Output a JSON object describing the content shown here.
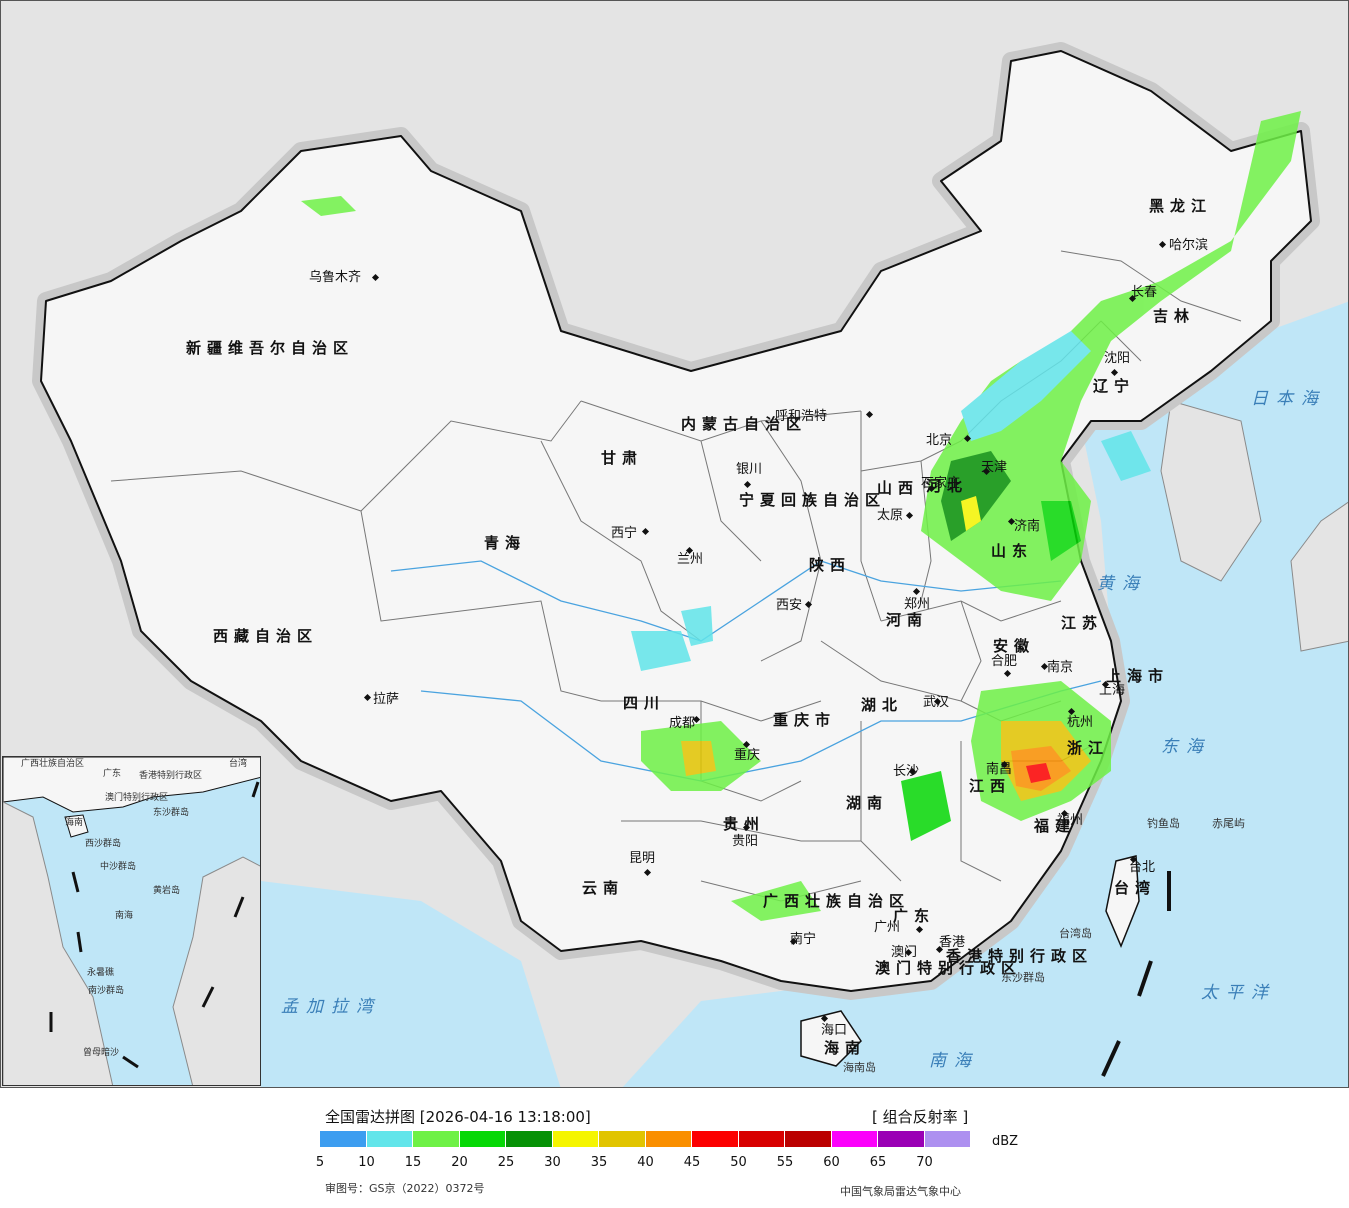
{
  "map": {
    "provinces": [
      {
        "name": "新疆维吾尔自治区"
      },
      {
        "name": "西藏自治区"
      },
      {
        "name": "青海"
      },
      {
        "name": "甘肃"
      },
      {
        "name": "内蒙古自治区"
      },
      {
        "name": "黑龙江"
      },
      {
        "name": "吉林"
      },
      {
        "name": "辽宁"
      },
      {
        "name": "河北"
      },
      {
        "name": "山西"
      },
      {
        "name": "陕西"
      },
      {
        "name": "河南"
      },
      {
        "name": "山东"
      },
      {
        "name": "江苏"
      },
      {
        "name": "安徽"
      },
      {
        "name": "浙江"
      },
      {
        "name": "湖北"
      },
      {
        "name": "湖南"
      },
      {
        "name": "江西"
      },
      {
        "name": "福建"
      },
      {
        "name": "四川"
      },
      {
        "name": "重庆市"
      },
      {
        "name": "贵州"
      },
      {
        "name": "云南"
      },
      {
        "name": "广西壮族自治区"
      },
      {
        "name": "广东"
      },
      {
        "name": "海南"
      },
      {
        "name": "上海市"
      },
      {
        "name": "台湾"
      },
      {
        "name": "宁夏回族自治区"
      },
      {
        "name": "香港特别行政区"
      },
      {
        "name": "澳门特别行政区"
      }
    ],
    "cities": [
      {
        "name": "乌鲁木齐"
      },
      {
        "name": "拉萨"
      },
      {
        "name": "西宁"
      },
      {
        "name": "兰州"
      },
      {
        "name": "银川"
      },
      {
        "name": "呼和浩特"
      },
      {
        "name": "哈尔滨"
      },
      {
        "name": "长春"
      },
      {
        "name": "沈阳"
      },
      {
        "name": "北京"
      },
      {
        "name": "天津"
      },
      {
        "name": "石家庄"
      },
      {
        "name": "太原"
      },
      {
        "name": "济南"
      },
      {
        "name": "西安"
      },
      {
        "name": "郑州"
      },
      {
        "name": "合肥"
      },
      {
        "name": "南京"
      },
      {
        "name": "上海"
      },
      {
        "name": "杭州"
      },
      {
        "name": "武汉"
      },
      {
        "name": "成都"
      },
      {
        "name": "重庆"
      },
      {
        "name": "长沙"
      },
      {
        "name": "南昌"
      },
      {
        "name": "福州"
      },
      {
        "name": "贵阳"
      },
      {
        "name": "昆明"
      },
      {
        "name": "南宁"
      },
      {
        "name": "广州"
      },
      {
        "name": "澳门"
      },
      {
        "name": "香港"
      },
      {
        "name": "海口"
      },
      {
        "name": "台北"
      }
    ],
    "seas": [
      {
        "name": "日本海"
      },
      {
        "name": "黄海"
      },
      {
        "name": "东海"
      },
      {
        "name": "南海"
      },
      {
        "name": "太平洋"
      },
      {
        "name": "孟加拉湾"
      }
    ],
    "islands": [
      {
        "name": "钓鱼岛"
      },
      {
        "name": "赤尾屿"
      },
      {
        "name": "台湾岛"
      },
      {
        "name": "东沙群岛"
      },
      {
        "name": "海南岛"
      }
    ],
    "inset_labels": [
      {
        "name": "广西壮族自治区"
      },
      {
        "name": "广东"
      },
      {
        "name": "台湾"
      },
      {
        "name": "香港特别行政区"
      },
      {
        "name": "澳门特别行政区"
      },
      {
        "name": "东沙群岛"
      },
      {
        "name": "海南"
      },
      {
        "name": "西沙群岛"
      },
      {
        "name": "中沙群岛"
      },
      {
        "name": "黄岩岛"
      },
      {
        "name": "南海"
      },
      {
        "name": "永暑礁"
      },
      {
        "name": "南沙群岛"
      },
      {
        "name": "曾母暗沙"
      }
    ]
  },
  "legend": {
    "title": "全国雷达拼图 [2026-04-16 13:18:00]",
    "product": "[ 组合反射率 ]",
    "unit": "dBZ",
    "colors": [
      "#3c9df0",
      "#62e5ea",
      "#6ef146",
      "#06d806",
      "#069106",
      "#f5f500",
      "#e1c400",
      "#fa8f00",
      "#fc0000",
      "#d80000",
      "#bb0000",
      "#fb00fb",
      "#9a00b5",
      "#ad90f0"
    ],
    "ticks": [
      "5",
      "10",
      "15",
      "20",
      "25",
      "30",
      "35",
      "40",
      "45",
      "50",
      "55",
      "60",
      "65",
      "70"
    ],
    "approval": "审图号：GS京（2022）0372号",
    "credit": "中国气象局雷达气象中心"
  }
}
